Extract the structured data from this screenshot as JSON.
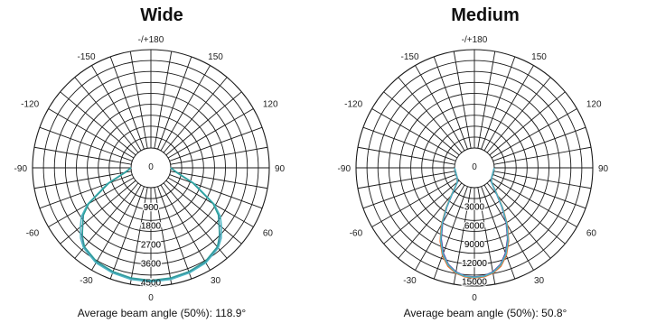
{
  "chart_data": [
    {
      "type": "polar-line",
      "title": "Wide",
      "angle_labels": [
        "-/+180",
        "150",
        "120",
        "90",
        "60",
        "30",
        "0",
        "-30",
        "-60",
        "-90",
        "-120",
        "-150"
      ],
      "radial_ticks": [
        900,
        1800,
        2700,
        3600,
        4500
      ],
      "r_max": 4700,
      "footer": "Average beam angle (50%): 118.9°",
      "series": [
        {
          "color": "#5b3fa0",
          "points": [
            [
              -90,
              0
            ],
            [
              -80,
              300
            ],
            [
              -70,
              1200
            ],
            [
              -60,
              2500
            ],
            [
              -55,
              3000
            ],
            [
              -50,
              3300
            ],
            [
              -45,
              3700
            ],
            [
              -40,
              4000
            ],
            [
              -30,
              4250
            ],
            [
              -20,
              4350
            ],
            [
              -10,
              4420
            ],
            [
              0,
              4450
            ],
            [
              10,
              4420
            ],
            [
              20,
              4350
            ],
            [
              30,
              4250
            ],
            [
              40,
              4000
            ],
            [
              45,
              3700
            ],
            [
              50,
              3300
            ],
            [
              55,
              3000
            ],
            [
              60,
              2500
            ],
            [
              70,
              1200
            ],
            [
              80,
              300
            ],
            [
              90,
              0
            ]
          ]
        },
        {
          "color": "#4cb8c4",
          "points": [
            [
              -90,
              0
            ],
            [
              -80,
              320
            ],
            [
              -70,
              1250
            ],
            [
              -60,
              2550
            ],
            [
              -55,
              3100
            ],
            [
              -50,
              3450
            ],
            [
              -45,
              3800
            ],
            [
              -40,
              4050
            ],
            [
              -30,
              4300
            ],
            [
              -20,
              4400
            ],
            [
              -10,
              4470
            ],
            [
              0,
              4500
            ],
            [
              10,
              4470
            ],
            [
              20,
              4400
            ],
            [
              30,
              4300
            ],
            [
              40,
              4050
            ],
            [
              45,
              3800
            ],
            [
              50,
              3450
            ],
            [
              55,
              3100
            ],
            [
              60,
              2550
            ],
            [
              70,
              1250
            ],
            [
              80,
              320
            ],
            [
              90,
              0
            ]
          ]
        },
        {
          "color": "#2e9f9a",
          "points": [
            [
              -90,
              0
            ],
            [
              -80,
              280
            ],
            [
              -70,
              1180
            ],
            [
              -60,
              2480
            ],
            [
              -55,
              2980
            ],
            [
              -50,
              3300
            ],
            [
              -45,
              3680
            ],
            [
              -40,
              3980
            ],
            [
              -30,
              4230
            ],
            [
              -20,
              4330
            ],
            [
              -10,
              4400
            ],
            [
              0,
              4430
            ],
            [
              10,
              4400
            ],
            [
              20,
              4330
            ],
            [
              30,
              4230
            ],
            [
              40,
              3980
            ],
            [
              45,
              3680
            ],
            [
              50,
              3300
            ],
            [
              55,
              2980
            ],
            [
              60,
              2480
            ],
            [
              70,
              1180
            ],
            [
              80,
              280
            ],
            [
              90,
              0
            ]
          ]
        }
      ]
    },
    {
      "type": "polar-line",
      "title": "Medium",
      "angle_labels": [
        "-/+180",
        "150",
        "120",
        "90",
        "60",
        "30",
        "0",
        "-30",
        "-60",
        "-90",
        "-120",
        "-150"
      ],
      "radial_ticks": [
        3000,
        6000,
        9000,
        12000,
        15000
      ],
      "r_max": 15800,
      "footer": "Average beam angle (50%): 50.8°",
      "series": [
        {
          "color": "#e8692a",
          "points": [
            [
              -90,
              0
            ],
            [
              -60,
              0
            ],
            [
              -50,
              400
            ],
            [
              -45,
              1200
            ],
            [
              -40,
              2600
            ],
            [
              -35,
              4800
            ],
            [
              -30,
              7400
            ],
            [
              -25,
              9800
            ],
            [
              -20,
              11800
            ],
            [
              -15,
              13200
            ],
            [
              -10,
              14000
            ],
            [
              -5,
              14400
            ],
            [
              0,
              14500
            ],
            [
              5,
              14400
            ],
            [
              10,
              14000
            ],
            [
              15,
              13200
            ],
            [
              20,
              11800
            ],
            [
              25,
              9800
            ],
            [
              30,
              7400
            ],
            [
              35,
              4800
            ],
            [
              40,
              2600
            ],
            [
              45,
              1200
            ],
            [
              50,
              400
            ],
            [
              60,
              0
            ],
            [
              90,
              0
            ]
          ]
        },
        {
          "color": "#5b3fa0",
          "points": [
            [
              -90,
              0
            ],
            [
              -60,
              0
            ],
            [
              -50,
              350
            ],
            [
              -45,
              1100
            ],
            [
              -40,
              2400
            ],
            [
              -35,
              4500
            ],
            [
              -30,
              7000
            ],
            [
              -25,
              9400
            ],
            [
              -20,
              11400
            ],
            [
              -15,
              12900
            ],
            [
              -10,
              13800
            ],
            [
              -5,
              14250
            ],
            [
              0,
              14350
            ],
            [
              5,
              14250
            ],
            [
              10,
              13800
            ],
            [
              15,
              12900
            ],
            [
              20,
              11400
            ],
            [
              25,
              9400
            ],
            [
              30,
              7000
            ],
            [
              35,
              4500
            ],
            [
              40,
              2400
            ],
            [
              45,
              1100
            ],
            [
              50,
              350
            ],
            [
              60,
              0
            ],
            [
              90,
              0
            ]
          ]
        },
        {
          "color": "#4cb8c4",
          "points": [
            [
              -90,
              0
            ],
            [
              -60,
              0
            ],
            [
              -50,
              380
            ],
            [
              -45,
              1150
            ],
            [
              -40,
              2500
            ],
            [
              -35,
              4650
            ],
            [
              -30,
              7200
            ],
            [
              -25,
              9600
            ],
            [
              -20,
              11600
            ],
            [
              -15,
              13000
            ],
            [
              -10,
              13900
            ],
            [
              -5,
              14300
            ],
            [
              0,
              14400
            ],
            [
              5,
              14300
            ],
            [
              10,
              13900
            ],
            [
              15,
              13000
            ],
            [
              20,
              11600
            ],
            [
              25,
              9600
            ],
            [
              30,
              7200
            ],
            [
              35,
              4650
            ],
            [
              40,
              2500
            ],
            [
              45,
              1150
            ],
            [
              50,
              380
            ],
            [
              60,
              0
            ],
            [
              90,
              0
            ]
          ]
        }
      ]
    }
  ]
}
